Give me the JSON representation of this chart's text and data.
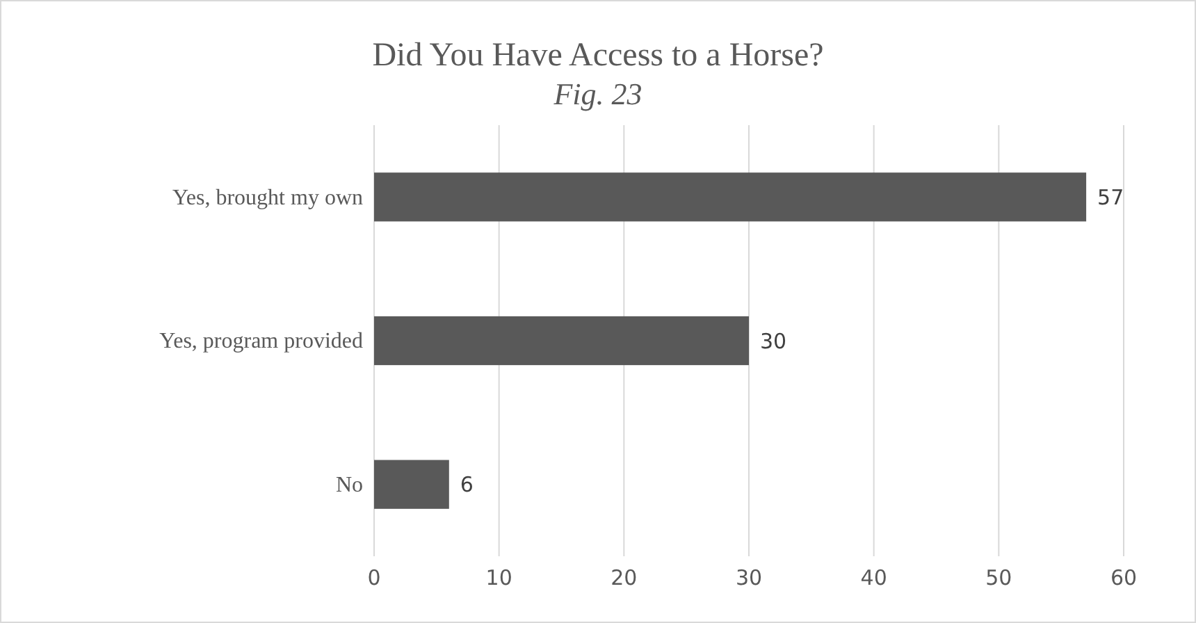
{
  "chart_data": {
    "type": "bar",
    "orientation": "horizontal",
    "title": "Did You Have Access to a Horse?",
    "subtitle": "Fig. 23",
    "categories": [
      "Yes, brought my own",
      "Yes, program provided",
      "No"
    ],
    "values": [
      57,
      30,
      6
    ],
    "color": "#595959",
    "xlim": [
      0,
      60
    ],
    "xticks": [
      0,
      10,
      20,
      30,
      40,
      50,
      60
    ],
    "grid": "x",
    "data_labels": true
  }
}
